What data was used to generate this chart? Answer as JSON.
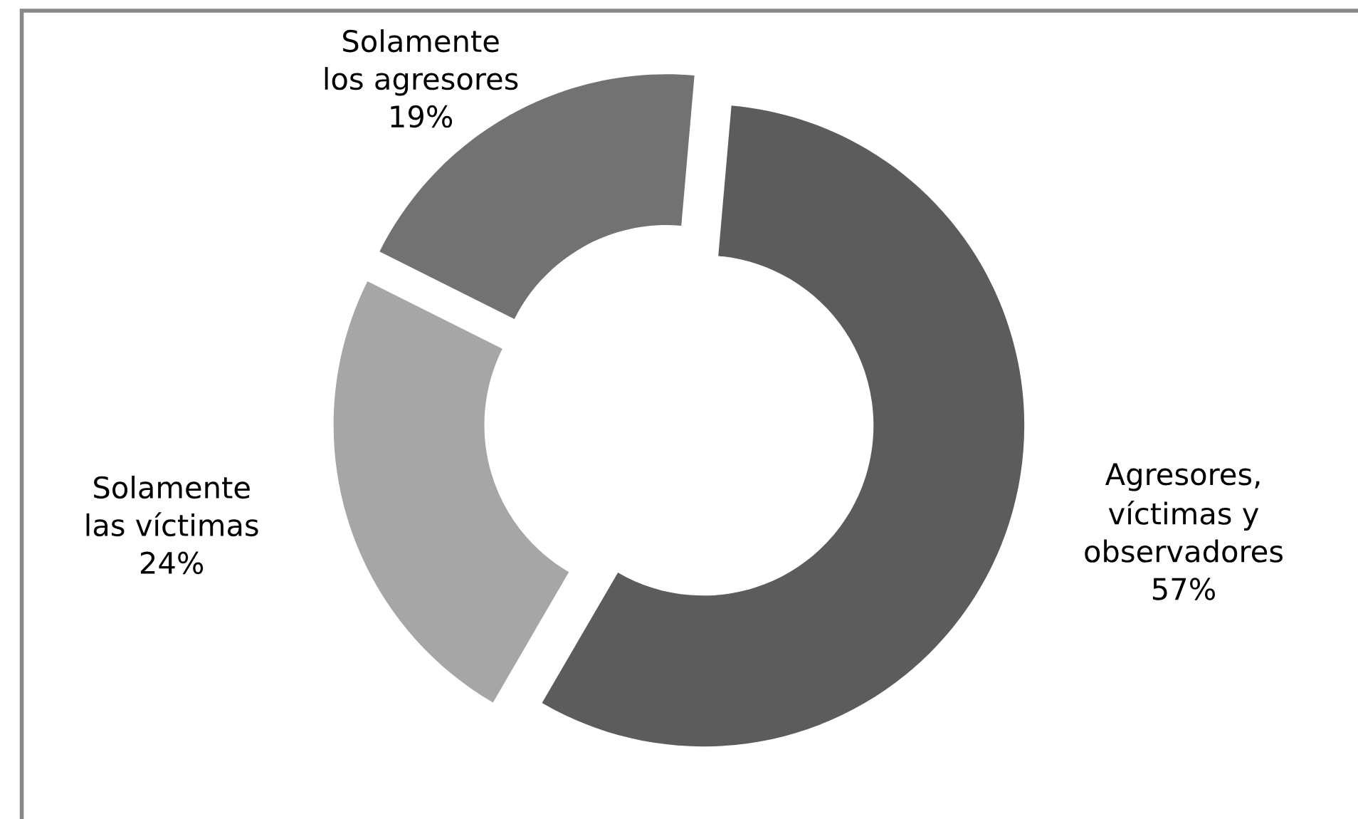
{
  "chart_data": {
    "type": "donut",
    "categories": [
      "Agresores,\nvíctimas y\nobservadores",
      "Solamente\nlas víctimas",
      "Solamente\nlos agresores"
    ],
    "values": [
      57,
      24,
      19
    ],
    "value_labels": [
      "57%",
      "24%",
      "19%"
    ],
    "colors": [
      "#5c5c5c",
      "#a6a6a6",
      "#727272"
    ],
    "legend": false
  }
}
